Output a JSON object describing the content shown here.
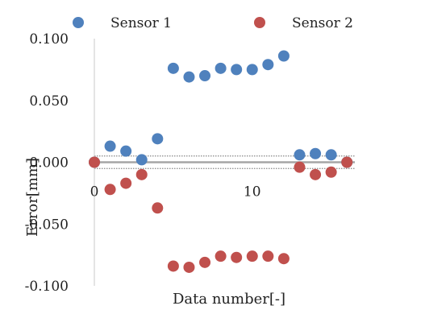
{
  "chart_data": {
    "type": "scatter",
    "title": "",
    "xlabel": "Data number[-]",
    "ylabel": "Error[mm]",
    "xlim": [
      0,
      16.5
    ],
    "ylim": [
      -0.1,
      0.1
    ],
    "x_ticks": [
      0,
      10
    ],
    "x_tick_labels": [
      "0",
      "10"
    ],
    "y_ticks": [
      0.1,
      0.05,
      0,
      -0.05,
      -0.1
    ],
    "y_tick_labels": [
      "0.100",
      "0.050",
      "0.000",
      "-0.050",
      "-0.100"
    ],
    "grid": false,
    "legend_position": "top",
    "reference_lines": [
      0.005,
      -0.005
    ],
    "series": [
      {
        "name": "Sensor 1",
        "color": "#4f81bd",
        "x": [
          0,
          1,
          2,
          3,
          4,
          5,
          6,
          7,
          8,
          9,
          10,
          11,
          12,
          13,
          14,
          15,
          16
        ],
        "y": [
          0.0,
          0.013,
          0.009,
          0.002,
          0.019,
          0.076,
          0.069,
          0.07,
          0.076,
          0.075,
          0.075,
          0.079,
          0.086,
          0.006,
          0.007,
          0.006,
          0.0
        ]
      },
      {
        "name": "Sensor 2",
        "color": "#c0504d",
        "x": [
          0,
          1,
          2,
          3,
          4,
          5,
          6,
          7,
          8,
          9,
          10,
          11,
          12,
          13,
          14,
          15,
          16
        ],
        "y": [
          0.0,
          -0.022,
          -0.017,
          -0.01,
          -0.037,
          -0.084,
          -0.085,
          -0.081,
          -0.076,
          -0.077,
          -0.076,
          -0.076,
          -0.078,
          -0.004,
          -0.01,
          -0.008,
          0.0
        ]
      }
    ]
  }
}
